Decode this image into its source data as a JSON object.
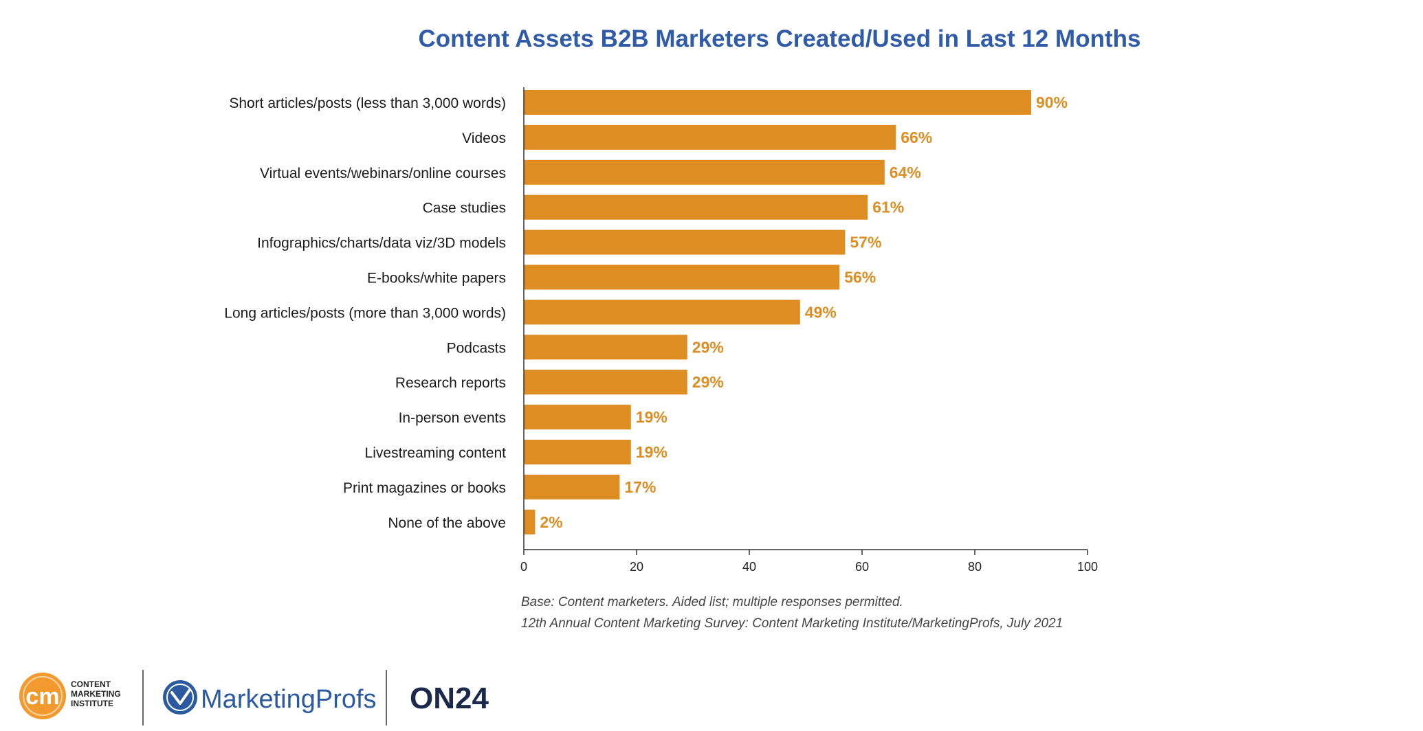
{
  "chart_data": {
    "type": "bar",
    "orientation": "horizontal",
    "title": "Content Assets B2B Marketers Created/Used in Last 12 Months",
    "categories": [
      "Short articles/posts (less than 3,000 words)",
      "Videos",
      "Virtual events/webinars/online courses",
      "Case studies",
      "Infographics/charts/data viz/3D models",
      "E-books/white papers",
      "Long articles/posts (more than 3,000 words)",
      "Podcasts",
      "Research reports",
      "In-person events",
      "Livestreaming content",
      "Print magazines or books",
      "None of the above"
    ],
    "values": [
      90,
      66,
      64,
      61,
      57,
      56,
      49,
      29,
      29,
      19,
      19,
      17,
      2
    ],
    "value_labels": [
      "90%",
      "66%",
      "64%",
      "61%",
      "57%",
      "56%",
      "49%",
      "29%",
      "29%",
      "19%",
      "19%",
      "17%",
      "2%"
    ],
    "xlim": [
      0,
      100
    ],
    "xticks": [
      0,
      20,
      40,
      60,
      80,
      100
    ],
    "xlabel": "",
    "ylabel": "",
    "grid": false,
    "bar_color": "#dd8d22"
  },
  "notes": {
    "base": "Base: Content marketers. Aided list; multiple responses permitted.",
    "source": "12th Annual Content Marketing Survey: Content Marketing Institute/MarketingProfs, July 2021"
  },
  "logos": {
    "cmi_mark": "cm",
    "cmi_lines": [
      "CONTENT",
      "MARKETING",
      "INSTITUTE"
    ],
    "marketingprofs": "MarketingProfs",
    "on24": "ON24"
  },
  "colors": {
    "title": "#2f5ba8",
    "bar": "#dd8d22",
    "cmi_orange": "#f29a2e",
    "marketingprofs_blue": "#2c5aa0",
    "on24_navy": "#1b2a4a"
  }
}
